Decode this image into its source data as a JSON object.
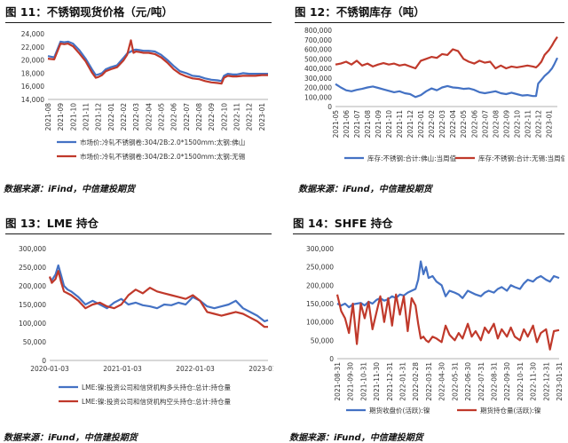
{
  "panels": [
    {
      "title": "图 11：不锈钢现货价格（元/吨）",
      "source": "数据来源：iFind，中信建投期货"
    },
    {
      "title": "图 12：不锈钢库存（吨）",
      "source": "数据来源：iFund，中信建投期货"
    },
    {
      "title": "图 13：LME 持仓",
      "source": "数据来源：iFund，中信建投期货"
    },
    {
      "title": "图 14：SHFE 持仓",
      "source": "数据来源：iFund，中信建投期货"
    }
  ],
  "chart_data": [
    {
      "type": "line",
      "title": "",
      "ylim": [
        14000,
        24000
      ],
      "yticks": [
        "14,000",
        "16,000",
        "18,000",
        "20,000",
        "22,000",
        "24,000"
      ],
      "xticks": [
        "2021-08",
        "2021-09",
        "2021-10",
        "2021-11",
        "2021-12",
        "2022-01",
        "2022-02",
        "2022-03",
        "2022-04",
        "2022-05",
        "2022-06",
        "2022-07",
        "2022-08",
        "2022-09",
        "2022-10",
        "2022-11",
        "2022-12",
        "2023-01"
      ],
      "x": [
        0,
        0.5,
        1,
        1.3,
        1.6,
        2,
        2.5,
        3,
        3.5,
        3.8,
        4,
        4.3,
        4.6,
        5,
        5.5,
        6,
        6.3,
        6.6,
        6.8,
        7,
        7.3,
        7.6,
        8,
        8.5,
        9,
        9.5,
        10,
        10.5,
        11,
        11.5,
        12,
        12.5,
        13,
        13.5,
        13.8,
        14,
        14.3,
        14.7,
        15,
        15.5,
        16,
        16.5,
        17,
        17.5
      ],
      "series": [
        {
          "name": "市场价:冷轧不锈钢卷:304/2B:2.0*1500mm:太钢:佛山",
          "color": "#4472C4",
          "values": [
            20600,
            20400,
            22800,
            22700,
            22800,
            22500,
            21500,
            20200,
            18600,
            17700,
            17800,
            18000,
            18600,
            18900,
            19200,
            20300,
            21000,
            21300,
            21500,
            21600,
            21500,
            21400,
            21400,
            21300,
            20800,
            20000,
            19100,
            18300,
            18000,
            17600,
            17500,
            17200,
            17000,
            16900,
            16800,
            17600,
            17900,
            17800,
            17800,
            18000,
            17900,
            17900,
            17900,
            17900
          ]
        },
        {
          "name": "市场价:冷轧不锈钢卷:304/2B:2.0*1500mm:太钢:无锡",
          "color": "#C0392B",
          "values": [
            20200,
            20100,
            22500,
            22400,
            22500,
            22100,
            21000,
            19800,
            18100,
            17300,
            17400,
            17700,
            18300,
            18600,
            18900,
            19900,
            20800,
            23000,
            21100,
            21300,
            21200,
            21100,
            21100,
            20900,
            20400,
            19600,
            18600,
            17900,
            17500,
            17200,
            17100,
            16800,
            16600,
            16500,
            16400,
            17300,
            17600,
            17500,
            17500,
            17600,
            17600,
            17600,
            17700,
            17700
          ]
        }
      ]
    },
    {
      "type": "line",
      "title": "",
      "ylim": [
        0,
        800000
      ],
      "yticks": [
        "0",
        "100,000",
        "200,000",
        "300,000",
        "400,000",
        "500,000",
        "600,000",
        "700,000",
        "800,000"
      ],
      "xticks": [
        "2021-05",
        "2021-06",
        "2021-07",
        "2021-08",
        "2021-09",
        "2021-10",
        "2021-11",
        "2021-12",
        "2022-01",
        "2022-02",
        "2022-03",
        "2022-04",
        "2022-05",
        "2022-06",
        "2022-07",
        "2022-08",
        "2022-09",
        "2022-10",
        "2022-11",
        "2022-12",
        "2023-01"
      ],
      "x": [
        0,
        0.5,
        1,
        1.5,
        2,
        2.5,
        3,
        3.5,
        4,
        4.5,
        5,
        5.5,
        6,
        6.5,
        7,
        7.5,
        8,
        8.5,
        9,
        9.5,
        10,
        10.5,
        11,
        11.5,
        12,
        12.5,
        13,
        13.5,
        14,
        14.5,
        15,
        15.5,
        16,
        16.5,
        17,
        17.5,
        18,
        18.5,
        18.8,
        19,
        19.3,
        19.6,
        20,
        20.3,
        20.5,
        20.8
      ],
      "series": [
        {
          "name": "库存:不锈钢:合计:佛山:当周值",
          "color": "#4472C4",
          "values": [
            235000,
            200000,
            170000,
            160000,
            175000,
            185000,
            200000,
            210000,
            195000,
            180000,
            165000,
            150000,
            160000,
            140000,
            130000,
            100000,
            120000,
            160000,
            190000,
            170000,
            200000,
            215000,
            200000,
            195000,
            185000,
            190000,
            175000,
            150000,
            140000,
            150000,
            160000,
            140000,
            130000,
            145000,
            130000,
            115000,
            120000,
            110000,
            110000,
            240000,
            280000,
            320000,
            360000,
            400000,
            440000,
            510000
          ]
        },
        {
          "name": "库存:不锈钢:合计:无锡:当周值",
          "color": "#C0392B",
          "values": [
            440000,
            450000,
            470000,
            440000,
            480000,
            430000,
            450000,
            420000,
            440000,
            455000,
            440000,
            450000,
            430000,
            440000,
            420000,
            400000,
            480000,
            500000,
            520000,
            510000,
            550000,
            540000,
            600000,
            580000,
            500000,
            470000,
            450000,
            480000,
            460000,
            470000,
            400000,
            430000,
            400000,
            420000,
            410000,
            420000,
            430000,
            420000,
            410000,
            430000,
            470000,
            540000,
            590000,
            640000,
            680000,
            730000
          ]
        }
      ]
    },
    {
      "type": "line",
      "title": "",
      "ylim": [
        0,
        300000
      ],
      "yticks": [
        "0",
        "50,000",
        "100,000",
        "150,000",
        "200,000",
        "250,000",
        "300,000"
      ],
      "xticks": [
        "2020-01-03",
        "2021-01-03",
        "2022-01-03",
        "2023-01-03"
      ],
      "x": [
        0,
        0.03,
        0.08,
        0.12,
        0.16,
        0.2,
        0.25,
        0.3,
        0.4,
        0.5,
        0.6,
        0.7,
        0.8,
        0.9,
        1.0,
        1.1,
        1.2,
        1.3,
        1.4,
        1.5,
        1.6,
        1.7,
        1.8,
        1.9,
        2.0,
        2.1,
        2.2,
        2.3,
        2.4,
        2.5,
        2.6,
        2.7,
        2.8,
        2.9,
        3.0,
        3.05
      ],
      "series": [
        {
          "name": "LME:镍:投资公司和信贷机构多头持仓:总计:持仓量",
          "color": "#4472C4",
          "values": [
            222000,
            215000,
            230000,
            255000,
            228000,
            200000,
            190000,
            185000,
            170000,
            150000,
            160000,
            150000,
            140000,
            155000,
            165000,
            150000,
            155000,
            148000,
            145000,
            140000,
            150000,
            148000,
            155000,
            150000,
            170000,
            160000,
            145000,
            140000,
            145000,
            150000,
            160000,
            140000,
            130000,
            120000,
            105000,
            108000
          ]
        },
        {
          "name": "LME:镍:投资公司和信贷机构空头持仓:总计:持仓量",
          "color": "#C0392B",
          "values": [
            225000,
            208000,
            218000,
            240000,
            210000,
            185000,
            180000,
            175000,
            160000,
            140000,
            150000,
            155000,
            145000,
            140000,
            150000,
            175000,
            190000,
            180000,
            195000,
            185000,
            180000,
            175000,
            170000,
            165000,
            175000,
            160000,
            130000,
            125000,
            120000,
            125000,
            130000,
            125000,
            115000,
            105000,
            90000,
            90000
          ]
        }
      ]
    },
    {
      "type": "line",
      "title": "",
      "ylim": [
        0,
        300000
      ],
      "yticks": [
        "0",
        "50,000",
        "100,000",
        "150,000",
        "200,000",
        "250,000",
        "300,000"
      ],
      "xticks": [
        "2021-08-31",
        "2021-09-30",
        "2021-10-31",
        "2021-11-30",
        "2021-12-31",
        "2022-01-31",
        "2022-02-28",
        "2022-03-31",
        "2022-04-30",
        "2022-05-31",
        "2022-06-30",
        "2022-07-31",
        "2022-08-31",
        "2022-09-30",
        "2022-10-31",
        "2022-11-30",
        "2022-12-31",
        "2023-01-31"
      ],
      "x": [
        0,
        0.3,
        0.6,
        0.9,
        1.2,
        1.5,
        1.8,
        2.1,
        2.4,
        2.7,
        3,
        3.3,
        3.6,
        3.9,
        4.2,
        4.5,
        4.8,
        5.1,
        5.4,
        5.7,
        6,
        6.2,
        6.4,
        6.6,
        6.8,
        7,
        7.3,
        7.6,
        8,
        8.3,
        8.6,
        9,
        9.3,
        9.6,
        10,
        10.3,
        10.6,
        11,
        11.3,
        11.6,
        12,
        12.3,
        12.6,
        13,
        13.3,
        13.6,
        14,
        14.3,
        14.6,
        15,
        15.3,
        15.6,
        16,
        16.3,
        16.6,
        17
      ],
      "series": [
        {
          "name": "期货收盘价(活跃):镍",
          "color": "#4472C4",
          "values": [
            150000,
            145000,
            150000,
            140000,
            148000,
            150000,
            152000,
            145000,
            155000,
            150000,
            160000,
            165000,
            158000,
            162000,
            170000,
            165000,
            175000,
            172000,
            180000,
            185000,
            190000,
            215000,
            265000,
            230000,
            250000,
            220000,
            225000,
            210000,
            200000,
            170000,
            185000,
            180000,
            175000,
            165000,
            185000,
            180000,
            175000,
            170000,
            180000,
            185000,
            180000,
            190000,
            195000,
            185000,
            200000,
            195000,
            190000,
            205000,
            215000,
            210000,
            220000,
            225000,
            215000,
            210000,
            225000,
            220000
          ]
        },
        {
          "name": "期货持仓量(活跃):镍",
          "color": "#C0392B",
          "values": [
            175000,
            130000,
            110000,
            70000,
            150000,
            40000,
            150000,
            110000,
            155000,
            80000,
            125000,
            170000,
            100000,
            165000,
            90000,
            175000,
            120000,
            170000,
            75000,
            165000,
            145000,
            95000,
            55000,
            60000,
            50000,
            45000,
            60000,
            55000,
            45000,
            90000,
            65000,
            50000,
            70000,
            55000,
            95000,
            60000,
            75000,
            50000,
            85000,
            70000,
            95000,
            55000,
            80000,
            60000,
            85000,
            60000,
            50000,
            80000,
            60000,
            90000,
            45000,
            70000,
            80000,
            25000,
            75000,
            78000
          ]
        }
      ]
    }
  ]
}
